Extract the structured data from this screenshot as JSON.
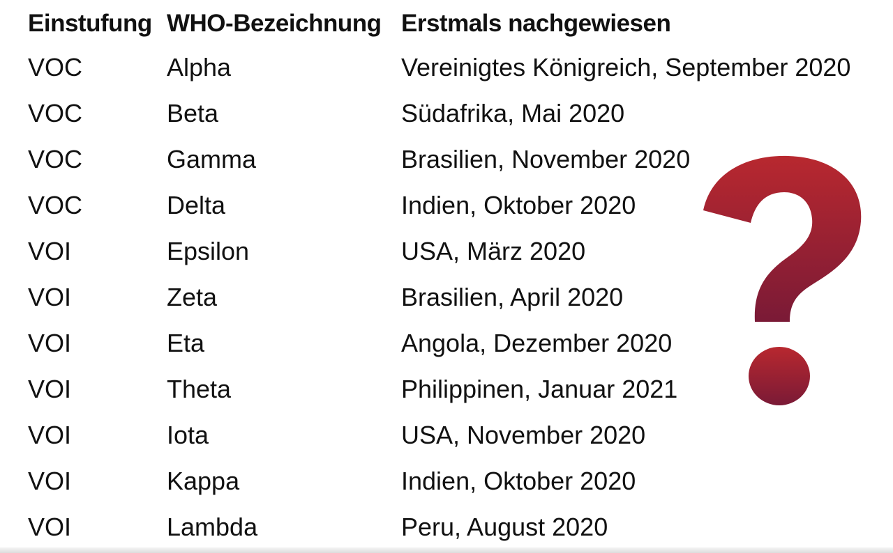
{
  "header": {
    "col1": "Einstufung",
    "col2": "WHO-Bezeichnung",
    "col3": "Erstmals nachgewiesen"
  },
  "rows": [
    {
      "class": "VOC",
      "name": "Alpha",
      "first_detected": "Vereinigtes Königreich, September 2020"
    },
    {
      "class": "VOC",
      "name": "Beta",
      "first_detected": "Südafrika, Mai 2020"
    },
    {
      "class": "VOC",
      "name": "Gamma",
      "first_detected": "Brasilien, November 2020"
    },
    {
      "class": "VOC",
      "name": "Delta",
      "first_detected": "Indien, Oktober 2020"
    },
    {
      "class": "VOI",
      "name": "Epsilon",
      "first_detected": "USA, März 2020"
    },
    {
      "class": "VOI",
      "name": "Zeta",
      "first_detected": "Brasilien, April 2020"
    },
    {
      "class": "VOI",
      "name": "Eta",
      "first_detected": "Angola, Dezember 2020"
    },
    {
      "class": "VOI",
      "name": "Theta",
      "first_detected": "Philippinen, Januar 2021"
    },
    {
      "class": "VOI",
      "name": "Iota",
      "first_detected": "USA, November 2020"
    },
    {
      "class": "VOI",
      "name": "Kappa",
      "first_detected": "Indien, Oktober 2020"
    },
    {
      "class": "VOI",
      "name": "Lambda",
      "first_detected": "Peru, August 2020"
    }
  ],
  "question_mark": {
    "icon": "question-mark-icon",
    "color_top": "#b8282f",
    "color_bottom": "#7a1a36"
  }
}
